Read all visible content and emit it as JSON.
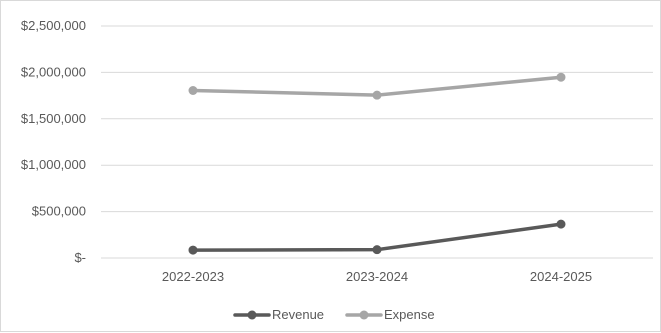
{
  "chart_data": {
    "type": "line",
    "categories": [
      "2022-2023",
      "2023-2024",
      "2024-2025"
    ],
    "series": [
      {
        "name": "Revenue",
        "values": [
          85000,
          90000,
          365000
        ],
        "color": "#595959"
      },
      {
        "name": "Expense",
        "values": [
          1805000,
          1755000,
          1948000
        ],
        "color": "#a6a6a6"
      }
    ],
    "ylim": [
      0,
      2500000
    ],
    "yticks": [
      {
        "value": 0,
        "label": "$-"
      },
      {
        "value": 500000,
        "label": "$500,000"
      },
      {
        "value": 1000000,
        "label": "$1,000,000"
      },
      {
        "value": 1500000,
        "label": "$1,500,000"
      },
      {
        "value": 2000000,
        "label": "$2,000,000"
      },
      {
        "value": 2500000,
        "label": "$2,500,000"
      }
    ],
    "grid": true,
    "legend": "bottom-center",
    "gridline_color": "#d9d9d9"
  }
}
